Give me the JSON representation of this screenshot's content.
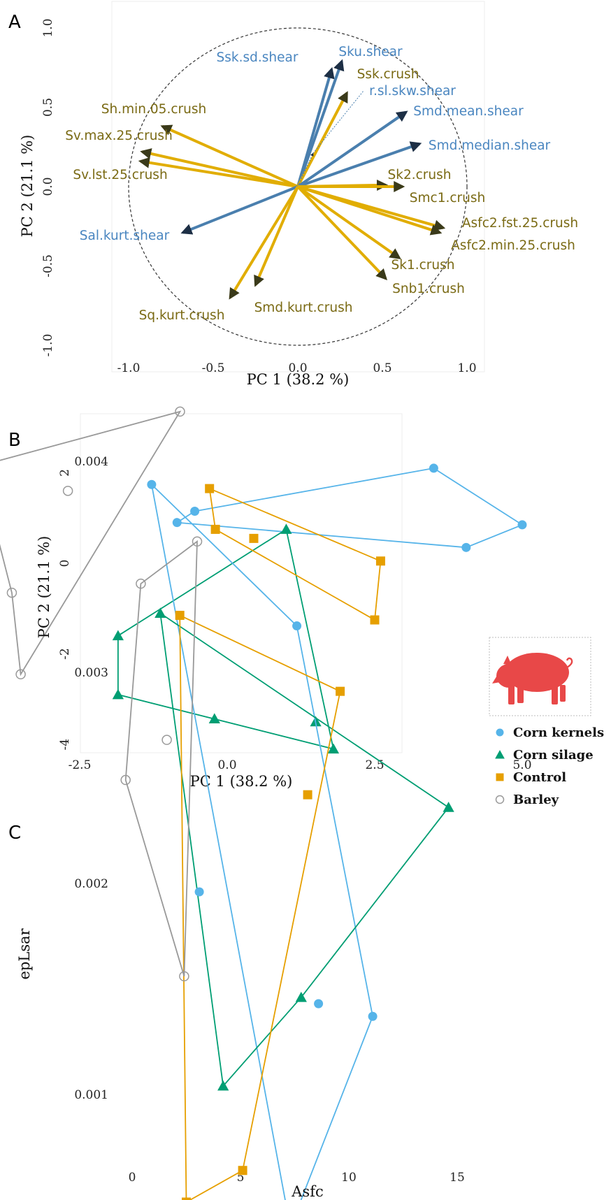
{
  "panels": {
    "A": {
      "letter": "A"
    },
    "B": {
      "letter": "B"
    },
    "C": {
      "letter": "C"
    }
  },
  "colors": {
    "crush": "#E1AD01",
    "shear": "#4A7FAE",
    "crush_text": "#7A6A14",
    "shear_text": "#4A86C0",
    "corn_kernels": "#56B4E9",
    "corn_silage": "#009E73",
    "control": "#E69F00",
    "barley": "#999999",
    "pig": "#E84848"
  },
  "legend": {
    "items": [
      {
        "label": "Corn kernels",
        "shape": "circle",
        "color": "#56B4E9"
      },
      {
        "label": "Corn silage",
        "shape": "triangle",
        "color": "#009E73"
      },
      {
        "label": "Control",
        "shape": "square",
        "color": "#E69F00"
      },
      {
        "label": "Barley",
        "shape": "open-circle",
        "color": "#999999"
      }
    ],
    "icon": "pig-icon"
  },
  "chart_data": [
    {
      "panel": "A",
      "type": "scatter",
      "subtype": "pca-loading-biplot",
      "xlabel": "PC 1 (38.2 %)",
      "ylabel": "PC 2 (21.1 %)",
      "xlim": [
        -1.1,
        1.1
      ],
      "ylim": [
        -1.1,
        1.05
      ],
      "xticks": [
        -1.0,
        -0.5,
        0.0,
        0.5,
        1.0
      ],
      "xtick_labels": [
        "-1.0",
        "-0.5",
        "0.0",
        "0.5",
        "1.0"
      ],
      "yticks": [
        -1.0,
        -0.5,
        0.0,
        0.5,
        1.0
      ],
      "ytick_labels": [
        "-1.0",
        "-0.5",
        "0.0",
        "0.5",
        "1.0"
      ],
      "unit_circle": true,
      "grid": false,
      "loadings": [
        {
          "name": "Ssk.sd.shear",
          "group": "shear",
          "x": 0.2,
          "y": 0.74
        },
        {
          "name": "Sku.shear",
          "group": "shear",
          "x": 0.26,
          "y": 0.79
        },
        {
          "name": "Ssk.crush",
          "group": "crush",
          "x": 0.29,
          "y": 0.59
        },
        {
          "name": "r.sl.skw.shear",
          "group": "shear",
          "x": 0.09,
          "y": 0.21,
          "dotted": true
        },
        {
          "name": "Smd.mean.shear",
          "group": "shear",
          "x": 0.64,
          "y": 0.47
        },
        {
          "name": "Smd.median.shear",
          "group": "shear",
          "x": 0.72,
          "y": 0.27
        },
        {
          "name": "Sh.min.05.crush",
          "group": "crush",
          "x": -0.8,
          "y": 0.38
        },
        {
          "name": "Sv.max.25.crush",
          "group": "crush",
          "x": -0.92,
          "y": 0.22
        },
        {
          "name": "Sv.lst.25.crush",
          "group": "crush",
          "x": -0.93,
          "y": 0.16
        },
        {
          "name": "Sk2.crush",
          "group": "crush",
          "x": 0.52,
          "y": 0.01
        },
        {
          "name": "Smc1.crush",
          "group": "crush",
          "x": 0.62,
          "y": 0.0
        },
        {
          "name": "Sal.kurt.shear",
          "group": "shear",
          "x": -0.68,
          "y": -0.29
        },
        {
          "name": "Asfc2.fst.25.crush",
          "group": "crush",
          "x": 0.86,
          "y": -0.26
        },
        {
          "name": "Asfc2.min.25.crush",
          "group": "crush",
          "x": 0.84,
          "y": -0.29
        },
        {
          "name": "Sk1.crush",
          "group": "crush",
          "x": 0.6,
          "y": -0.45
        },
        {
          "name": "Snb1.crush",
          "group": "crush",
          "x": 0.52,
          "y": -0.58
        },
        {
          "name": "Smd.kurt.crush",
          "group": "crush",
          "x": -0.25,
          "y": -0.62
        },
        {
          "name": "Sq.kurt.crush",
          "group": "crush",
          "x": -0.4,
          "y": -0.7
        }
      ]
    },
    {
      "panel": "B",
      "type": "scatter",
      "subtype": "pca-scores-with-convex-hulls",
      "xlabel": "PC 1 (38.2 %)",
      "ylabel": "PC 2 (21.1 %)",
      "xlim": [
        -4.55,
        5.4
      ],
      "ylim": [
        -4.85,
        3.7
      ],
      "xticks": [
        -2.5,
        0.0,
        2.5,
        5.0
      ],
      "xtick_labels": [
        "-2.5",
        "0.0",
        "2.5",
        "5.0"
      ],
      "yticks": [
        -4,
        -2,
        0,
        2
      ],
      "ytick_labels": [
        "-4",
        "-2",
        "0",
        "2"
      ],
      "grid": false,
      "series": [
        {
          "name": "Corn kernels",
          "points": [
            [
              -0.55,
              1.15
            ],
            [
              -0.85,
              0.9
            ],
            [
              3.5,
              2.1
            ],
            [
              5.0,
              0.85
            ],
            [
              4.05,
              0.35
            ]
          ],
          "hull": [
            [
              -0.55,
              1.15
            ],
            [
              3.5,
              2.1
            ],
            [
              5.0,
              0.85
            ],
            [
              4.05,
              0.35
            ],
            [
              -0.85,
              0.9
            ]
          ]
        },
        {
          "name": "Corn silage",
          "points": [
            [
              1.0,
              0.75
            ],
            [
              -1.85,
              -1.6
            ],
            [
              -1.85,
              -2.9
            ],
            [
              1.5,
              -3.5
            ],
            [
              1.8,
              -4.1
            ]
          ],
          "hull": [
            [
              1.0,
              0.75
            ],
            [
              1.8,
              -4.1
            ],
            [
              -1.85,
              -2.9
            ],
            [
              -1.85,
              -1.6
            ]
          ]
        },
        {
          "name": "Control",
          "points": [
            [
              -0.3,
              1.65
            ],
            [
              -0.2,
              0.75
            ],
            [
              0.45,
              0.55
            ],
            [
              2.6,
              0.05
            ],
            [
              2.5,
              -1.25
            ]
          ],
          "hull": [
            [
              -0.3,
              1.65
            ],
            [
              2.6,
              0.05
            ],
            [
              2.5,
              -1.25
            ],
            [
              -0.2,
              0.75
            ]
          ]
        },
        {
          "name": "Barley",
          "points": [
            [
              -0.8,
              3.35
            ],
            [
              -4.2,
              2.15
            ],
            [
              -2.7,
              1.6
            ],
            [
              -3.65,
              -0.65
            ],
            [
              -3.5,
              -2.45
            ]
          ],
          "hull": [
            [
              -0.8,
              3.35
            ],
            [
              -3.5,
              -2.45
            ],
            [
              -3.65,
              -0.65
            ],
            [
              -4.2,
              2.15
            ]
          ]
        }
      ]
    },
    {
      "panel": "C",
      "type": "scatter",
      "subtype": "raw-variables-with-convex-hulls",
      "xlabel": "Asfc",
      "ylabel": "epLsar",
      "xlim": [
        -0.6,
        16.1
      ],
      "ylim": [
        0.0003,
        0.0041
      ],
      "xticks": [
        0,
        5,
        10,
        15
      ],
      "xtick_labels": [
        "0",
        "5",
        "10",
        "15"
      ],
      "yticks": [
        0.001,
        0.002,
        0.003,
        0.004
      ],
      "ytick_labels": [
        "0.001",
        "0.002",
        "0.003",
        "0.004"
      ],
      "grid": false,
      "series": [
        {
          "name": "Corn kernels",
          "points": [
            [
              0.9,
              0.00389
            ],
            [
              7.6,
              0.00322
            ],
            [
              3.1,
              0.00196
            ],
            [
              8.6,
              0.00143
            ],
            [
              11.1,
              0.00137
            ],
            [
              7.3,
              0.00037
            ]
          ],
          "hull": [
            [
              0.9,
              0.00389
            ],
            [
              7.6,
              0.00322
            ],
            [
              11.1,
              0.00137
            ],
            [
              7.3,
              0.00037
            ]
          ]
        },
        {
          "name": "Corn silage",
          "points": [
            [
              1.3,
              0.00328
            ],
            [
              3.8,
              0.00278
            ],
            [
              14.6,
              0.00236
            ],
            [
              7.8,
              0.00146
            ],
            [
              4.2,
              0.00104
            ]
          ],
          "hull": [
            [
              1.3,
              0.00328
            ],
            [
              14.6,
              0.00236
            ],
            [
              7.8,
              0.00146
            ],
            [
              4.2,
              0.00104
            ]
          ]
        },
        {
          "name": "Control",
          "points": [
            [
              2.2,
              0.00327
            ],
            [
              9.6,
              0.00291
            ],
            [
              8.1,
              0.00242
            ],
            [
              5.1,
              0.00064
            ],
            [
              2.5,
              0.00049
            ]
          ],
          "hull": [
            [
              2.2,
              0.00327
            ],
            [
              9.6,
              0.00291
            ],
            [
              5.1,
              0.00064
            ],
            [
              2.5,
              0.00049
            ]
          ]
        },
        {
          "name": "Barley",
          "points": [
            [
              0.4,
              0.00342
            ],
            [
              3.0,
              0.00362
            ],
            [
              1.6,
              0.00268
            ],
            [
              -0.3,
              0.00249
            ],
            [
              2.4,
              0.00156
            ]
          ],
          "hull": [
            [
              0.4,
              0.00342
            ],
            [
              3.0,
              0.00362
            ],
            [
              2.4,
              0.00156
            ],
            [
              -0.3,
              0.00249
            ]
          ]
        }
      ]
    }
  ]
}
